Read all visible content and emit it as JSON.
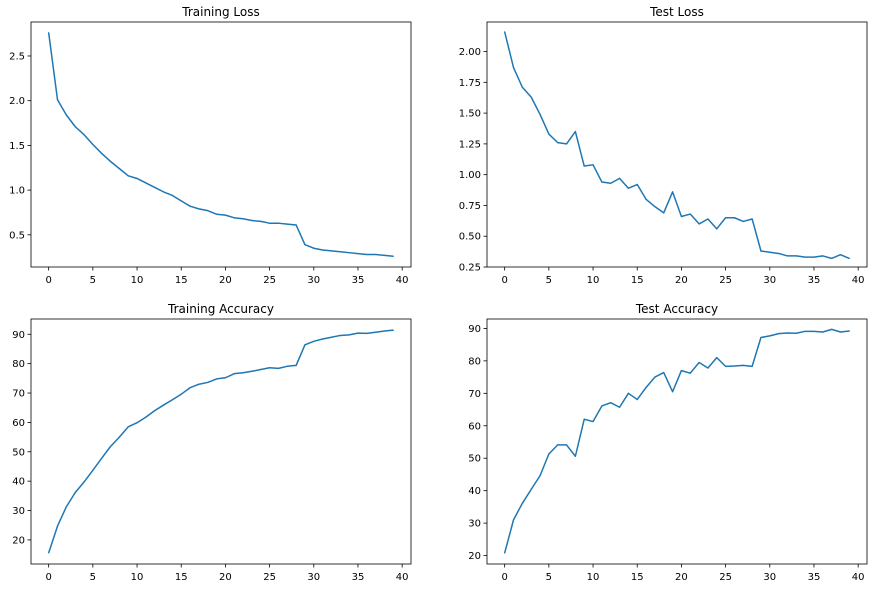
{
  "figure": {
    "line_color": "#1f77b4",
    "background": "#ffffff",
    "grid": false,
    "legend": false
  },
  "chart_data": [
    {
      "type": "line",
      "title": "Training Loss",
      "xlabel": "",
      "ylabel": "",
      "xlim": [
        -2,
        41
      ],
      "ylim": [
        0.14,
        2.88
      ],
      "x_ticks": [
        "0",
        "5",
        "10",
        "15",
        "20",
        "25",
        "30",
        "35",
        "40"
      ],
      "y_ticks": [
        "0.5",
        "1.0",
        "1.5",
        "2.0",
        "2.5"
      ],
      "series": [
        {
          "x": [
            0,
            1,
            2,
            3,
            4,
            5,
            6,
            7,
            8,
            9,
            10,
            11,
            12,
            13,
            14,
            15,
            16,
            17,
            18,
            19,
            20,
            21,
            22,
            23,
            24,
            25,
            26,
            27,
            28,
            29,
            30,
            31,
            32,
            33,
            34,
            35,
            36,
            37,
            38,
            39
          ],
          "values": [
            2.76,
            2.01,
            1.84,
            1.71,
            1.62,
            1.51,
            1.41,
            1.32,
            1.24,
            1.16,
            1.13,
            1.08,
            1.03,
            0.98,
            0.94,
            0.88,
            0.82,
            0.79,
            0.77,
            0.73,
            0.72,
            0.69,
            0.68,
            0.66,
            0.65,
            0.63,
            0.63,
            0.62,
            0.61,
            0.39,
            0.35,
            0.33,
            0.32,
            0.31,
            0.3,
            0.29,
            0.28,
            0.28,
            0.27,
            0.26
          ]
        }
      ]
    },
    {
      "type": "line",
      "title": "Test Loss",
      "xlabel": "",
      "ylabel": "",
      "xlim": [
        -2,
        41
      ],
      "ylim": [
        0.25,
        2.24
      ],
      "x_ticks": [
        "0",
        "5",
        "10",
        "15",
        "20",
        "25",
        "30",
        "35",
        "40"
      ],
      "y_ticks": [
        "0.25",
        "0.50",
        "0.75",
        "1.00",
        "1.25",
        "1.50",
        "1.75",
        "2.00"
      ],
      "series": [
        {
          "x": [
            0,
            1,
            2,
            3,
            4,
            5,
            6,
            7,
            8,
            9,
            10,
            11,
            12,
            13,
            14,
            15,
            16,
            17,
            18,
            19,
            20,
            21,
            22,
            23,
            24,
            25,
            26,
            27,
            28,
            29,
            30,
            31,
            32,
            33,
            34,
            35,
            36,
            37,
            38,
            39
          ],
          "values": [
            2.16,
            1.87,
            1.71,
            1.63,
            1.49,
            1.33,
            1.26,
            1.25,
            1.35,
            1.07,
            1.08,
            0.94,
            0.93,
            0.97,
            0.89,
            0.92,
            0.8,
            0.74,
            0.69,
            0.86,
            0.66,
            0.68,
            0.6,
            0.64,
            0.56,
            0.65,
            0.65,
            0.62,
            0.64,
            0.38,
            0.37,
            0.36,
            0.34,
            0.34,
            0.33,
            0.33,
            0.34,
            0.32,
            0.35,
            0.32
          ]
        }
      ]
    },
    {
      "type": "line",
      "title": "Training Accuracy",
      "xlabel": "",
      "ylabel": "",
      "xlim": [
        -2,
        41
      ],
      "ylim": [
        11.8,
        95.2
      ],
      "x_ticks": [
        "0",
        "5",
        "10",
        "15",
        "20",
        "25",
        "30",
        "35",
        "40"
      ],
      "y_ticks": [
        "20",
        "30",
        "40",
        "50",
        "60",
        "70",
        "80",
        "90"
      ],
      "series": [
        {
          "x": [
            0,
            1,
            2,
            3,
            4,
            5,
            6,
            7,
            8,
            9,
            10,
            11,
            12,
            13,
            14,
            15,
            16,
            17,
            18,
            19,
            20,
            21,
            22,
            23,
            24,
            25,
            26,
            27,
            28,
            29,
            30,
            31,
            32,
            33,
            34,
            35,
            36,
            37,
            38,
            39
          ],
          "values": [
            15.6,
            24.7,
            31.3,
            36.1,
            39.7,
            43.7,
            47.8,
            51.8,
            55.0,
            58.5,
            59.9,
            61.8,
            64.0,
            65.9,
            67.7,
            69.6,
            71.8,
            73.0,
            73.6,
            74.8,
            75.2,
            76.6,
            76.9,
            77.4,
            78.0,
            78.6,
            78.4,
            79.1,
            79.4,
            86.4,
            87.6,
            88.4,
            89.0,
            89.6,
            89.8,
            90.4,
            90.3,
            90.7,
            91.1,
            91.4
          ]
        }
      ]
    },
    {
      "type": "line",
      "title": "Test Accuracy",
      "xlabel": "",
      "ylabel": "",
      "xlim": [
        -2,
        41
      ],
      "ylim": [
        17.4,
        92.9
      ],
      "x_ticks": [
        "0",
        "5",
        "10",
        "15",
        "20",
        "25",
        "30",
        "35",
        "40"
      ],
      "y_ticks": [
        "20",
        "30",
        "40",
        "50",
        "60",
        "70",
        "80",
        "90"
      ],
      "series": [
        {
          "x": [
            0,
            1,
            2,
            3,
            4,
            5,
            6,
            7,
            8,
            9,
            10,
            11,
            12,
            13,
            14,
            15,
            16,
            17,
            18,
            19,
            20,
            21,
            22,
            23,
            24,
            25,
            26,
            27,
            28,
            29,
            30,
            31,
            32,
            33,
            34,
            35,
            36,
            37,
            38,
            39
          ],
          "values": [
            20.8,
            31.0,
            36.1,
            40.4,
            44.6,
            51.3,
            54.1,
            54.1,
            50.6,
            62.0,
            61.3,
            66.1,
            67.1,
            65.7,
            70.0,
            68.1,
            71.8,
            75.0,
            76.4,
            70.5,
            77.0,
            76.2,
            79.5,
            77.8,
            81.0,
            78.3,
            78.4,
            78.6,
            78.3,
            87.2,
            87.7,
            88.4,
            88.6,
            88.5,
            89.1,
            89.1,
            88.9,
            89.7,
            88.9,
            89.2
          ]
        }
      ]
    }
  ]
}
